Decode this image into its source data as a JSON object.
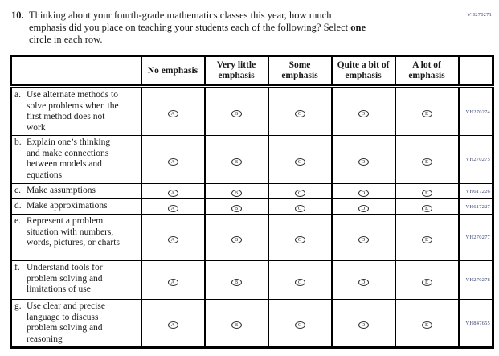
{
  "page": {
    "form_code": "VH270271"
  },
  "question": {
    "number": "10.",
    "line1": "Thinking about your fourth-grade mathematics classes this year, how much",
    "line2_pre": "emphasis did you place on teaching your students each of the following? Select",
    "line2_bold": "one",
    "line3": "circle in each row."
  },
  "table": {
    "column_headers": [
      "No emphasis",
      "Very little emphasis",
      "Some emphasis",
      "Quite a bit of emphasis",
      "A lot of emphasis"
    ],
    "option_letters": [
      "A",
      "B",
      "C",
      "D",
      "E"
    ],
    "rows": [
      {
        "letter": "a.",
        "label": "Use alternate methods to solve problems when the first method does not work",
        "code": "VH270274"
      },
      {
        "letter": "b.",
        "label": "Explain one’s thinking and make connections between models and equations",
        "code": "VH270275"
      },
      {
        "letter": "c.",
        "label": "Make assumptions",
        "code": "VH617226"
      },
      {
        "letter": "d.",
        "label": "Make approximations",
        "code": "VH617227"
      },
      {
        "letter": "e.",
        "label": "Represent a problem situation with numbers, words, pictures, or charts",
        "code": "VH270277"
      },
      {
        "letter": "f.",
        "label": "Understand tools for problem solving and limitations of use",
        "code": "VH270278"
      },
      {
        "letter": "g.",
        "label": "Use clear and precise language to discuss problem solving and reasoning",
        "code": "VH847655"
      }
    ]
  }
}
